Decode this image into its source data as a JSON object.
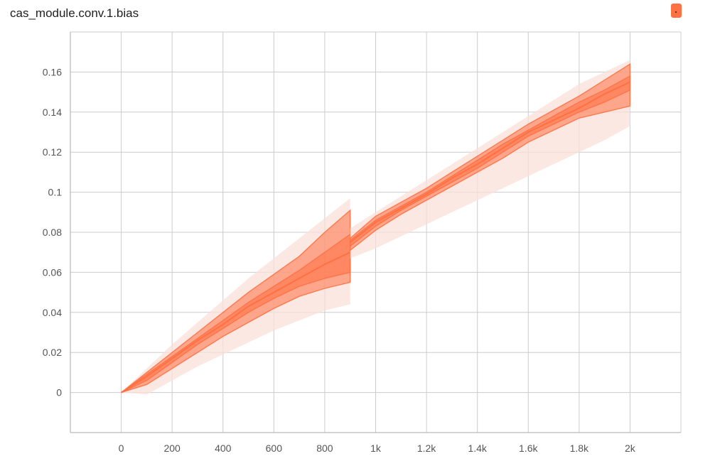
{
  "card": {
    "title": "cas_module.conv.1.bias"
  },
  "colors": {
    "accent": "#ff7043",
    "band_light": "#fbe0d8",
    "band_dark": "#ff7043",
    "grid": "#cccccc",
    "axis": "#aaaaaa"
  },
  "icons": {
    "corner": "color-swatch-icon"
  },
  "chart_data": {
    "type": "area",
    "title": "cas_module.conv.1.bias",
    "xlabel": "",
    "ylabel": "",
    "xlim": [
      -200,
      2200
    ],
    "ylim": [
      -0.02,
      0.18
    ],
    "grid": true,
    "legend": "none",
    "x_ticks": [
      0,
      200,
      400,
      600,
      800,
      1000,
      1200,
      1400,
      1600,
      1800,
      2000
    ],
    "x_tick_labels": [
      "0",
      "200",
      "400",
      "600",
      "800",
      "1k",
      "1.2k",
      "1.4k",
      "1.6k",
      "1.8k",
      "2k"
    ],
    "y_ticks": [
      0,
      0.02,
      0.04,
      0.06,
      0.08,
      0.1,
      0.12,
      0.14,
      0.16
    ],
    "y_tick_labels": [
      "0",
      "0.02",
      "0.04",
      "0.06",
      "0.08",
      "0.1",
      "0.12",
      "0.14",
      "0.16"
    ],
    "segments": [
      {
        "x": [
          0,
          100,
          200,
          300,
          400,
          500,
          600,
          700,
          800,
          900
        ],
        "bands": [
          {
            "kind": "outer",
            "lower": [
              0,
              -0.001,
              0.006,
              0.013,
              0.019,
              0.025,
              0.031,
              0.036,
              0.041,
              0.044
            ],
            "upper": [
              0,
              0.012,
              0.024,
              0.035,
              0.046,
              0.057,
              0.067,
              0.077,
              0.087,
              0.097
            ]
          },
          {
            "kind": "inner",
            "lower": [
              0,
              0.004,
              0.012,
              0.02,
              0.028,
              0.035,
              0.042,
              0.048,
              0.052,
              0.055
            ],
            "upper": [
              0,
              0.01,
              0.02,
              0.03,
              0.04,
              0.05,
              0.059,
              0.068,
              0.08,
              0.091
            ]
          },
          {
            "kind": "inner",
            "lower": [
              0,
              0.006,
              0.015,
              0.024,
              0.032,
              0.04,
              0.047,
              0.053,
              0.057,
              0.06
            ],
            "upper": [
              0,
              0.009,
              0.018,
              0.027,
              0.036,
              0.045,
              0.053,
              0.061,
              0.07,
              0.079
            ]
          }
        ],
        "median": [
          0,
          0.008,
          0.017,
          0.026,
          0.034,
          0.043,
          0.05,
          0.057,
          0.064,
          0.07
        ]
      },
      {
        "x": [
          900,
          1000,
          1100,
          1200,
          1300,
          1400,
          1500,
          1600,
          1700,
          1800,
          1900,
          2000
        ],
        "bands": [
          {
            "kind": "outer",
            "lower": [
              0.067,
              0.072,
              0.078,
              0.084,
              0.09,
              0.096,
              0.102,
              0.108,
              0.114,
              0.12,
              0.126,
              0.133
            ],
            "upper": [
              0.082,
              0.09,
              0.098,
              0.106,
              0.114,
              0.122,
              0.13,
              0.138,
              0.146,
              0.154,
              0.16,
              0.166
            ]
          },
          {
            "kind": "inner",
            "lower": [
              0.071,
              0.081,
              0.089,
              0.096,
              0.103,
              0.11,
              0.117,
              0.125,
              0.131,
              0.137,
              0.14,
              0.143
            ],
            "upper": [
              0.077,
              0.088,
              0.095,
              0.102,
              0.11,
              0.118,
              0.126,
              0.134,
              0.141,
              0.148,
              0.156,
              0.164
            ]
          },
          {
            "kind": "inner",
            "lower": [
              0.073,
              0.083,
              0.091,
              0.098,
              0.105,
              0.112,
              0.12,
              0.128,
              0.134,
              0.14,
              0.145,
              0.151
            ],
            "upper": [
              0.076,
              0.086,
              0.093,
              0.1,
              0.108,
              0.116,
              0.124,
              0.131,
              0.138,
              0.145,
              0.151,
              0.158
            ]
          }
        ],
        "median": [
          0.075,
          0.085,
          0.092,
          0.099,
          0.107,
          0.114,
          0.122,
          0.13,
          0.136,
          0.142,
          0.149,
          0.155
        ]
      }
    ]
  }
}
